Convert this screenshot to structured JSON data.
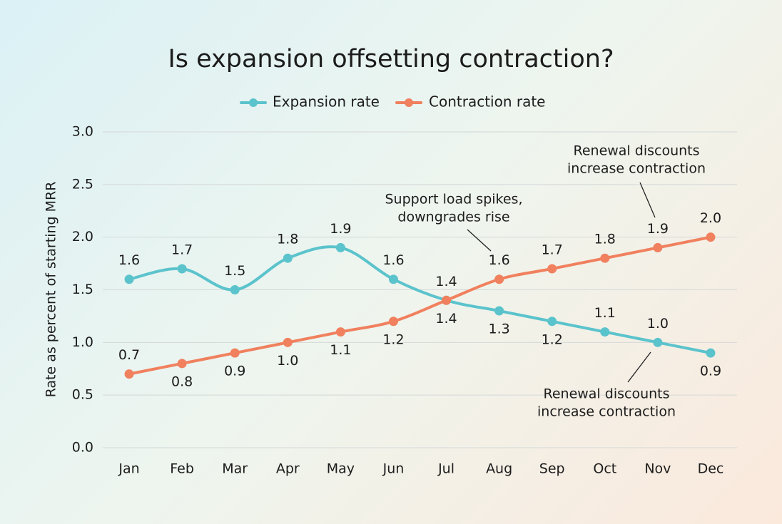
{
  "chart_data": {
    "type": "line",
    "title": "Is expansion offsetting contraction?",
    "y_label": "Rate as percent of starting MRR",
    "categories": [
      "Jan",
      "Feb",
      "Mar",
      "Apr",
      "May",
      "Jun",
      "Jul",
      "Aug",
      "Sep",
      "Oct",
      "Nov",
      "Dec"
    ],
    "series": [
      {
        "name": "Expansion rate",
        "color": "#5bc3cc",
        "values": [
          1.6,
          1.7,
          1.5,
          1.8,
          1.9,
          1.6,
          1.4,
          1.3,
          1.2,
          1.1,
          1.0,
          0.9
        ],
        "value_labels": [
          "1.6",
          "1.7",
          "1.5",
          "1.8",
          "1.9",
          "1.6",
          "1.4",
          "1.3",
          "1.2",
          "1.1",
          "1.0",
          "0.9"
        ]
      },
      {
        "name": "Contraction rate",
        "color": "#f0805e",
        "values": [
          0.7,
          0.8,
          0.9,
          1.0,
          1.1,
          1.2,
          1.4,
          1.6,
          1.7,
          1.8,
          1.9,
          2.0
        ],
        "value_labels": [
          "0.7",
          "0.8",
          "0.9",
          "1.0",
          "1.1",
          "1.2",
          "1.4",
          "1.6",
          "1.7",
          "1.8",
          "1.9",
          "2.0"
        ]
      }
    ],
    "ylim": [
      0,
      3
    ],
    "yticks": [
      {
        "value": 0,
        "label": "0.0"
      },
      0.5,
      {
        "value": 1,
        "label": "1.0"
      },
      1.5,
      {
        "value": 2,
        "label": "2.0"
      },
      2.5,
      {
        "value": 3,
        "label": "3.0"
      }
    ],
    "grid": true,
    "legend": "top",
    "annotations": [
      {
        "lines": [
          "Support load spikes,",
          "downgrades rise"
        ]
      },
      {
        "lines": [
          "Renewal discounts",
          "increase contraction"
        ]
      },
      {
        "lines": [
          "Renewal discounts",
          "increase contraction"
        ]
      }
    ]
  }
}
